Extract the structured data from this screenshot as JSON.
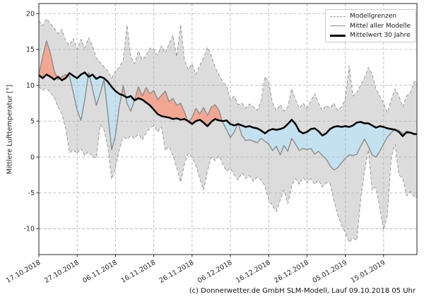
{
  "window": {
    "caption": "(c) Donnerwetter.de GmbH SLM-Modell, Lauf 09.10.2018 05 Uhr"
  },
  "chart_data": {
    "type": "line",
    "title": "",
    "xlabel": "",
    "ylabel": "Mittlere Lufttemperatur [°]",
    "ylim": [
      -13.6,
      21.4
    ],
    "yticks": [
      20,
      15,
      10,
      5,
      0,
      -5,
      -10
    ],
    "xtick_labels": [
      "17.10.2018",
      "27.10.2018",
      "06.11.2018",
      "16.11.2018",
      "26.11.2018",
      "06.12.2018",
      "16.12.2018",
      "26.12.2018",
      "05.01.2019",
      "15.01.2019"
    ],
    "xtick_days": [
      0,
      10,
      20,
      30,
      40,
      50,
      60,
      70,
      80,
      90
    ],
    "x_days_max": 98.7,
    "x_note": "x values are days after 17.10.2018, one sample per day",
    "grid": true,
    "legend": {
      "position": "upper right",
      "items": [
        {
          "label": "Modellgrenzen",
          "style": "dashed",
          "color": "#999999"
        },
        {
          "label": "Mittel aller Modelle",
          "style": "solid",
          "color": "#8c8c8c"
        },
        {
          "label": "Mittelwert 30 Jahre",
          "style": "bold",
          "color": "#000000"
        }
      ]
    },
    "colors": {
      "envelope_fill": "#dcdcdc",
      "warmer_fill": "#f2a795",
      "colder_fill": "#c4e1f0",
      "grid": "#b8b8b8",
      "spine": "#262626",
      "envelope_edge": "#999999",
      "mean_line": "#8c8c8c",
      "climate_line": "#000000"
    },
    "series": [
      {
        "name": "Modellgrenzen (oben)",
        "role": "envelope_upper",
        "values": [
          19.0,
          18.3,
          19.3,
          18.6,
          18.0,
          17.2,
          17.8,
          16.2,
          15.6,
          16.5,
          15.0,
          16.4,
          15.2,
          16.6,
          15.5,
          13.8,
          13.2,
          12.6,
          12.0,
          11.0,
          12.0,
          12.5,
          13.5,
          18.4,
          14.0,
          13.0,
          14.8,
          13.5,
          14.2,
          15.2,
          15.0,
          14.2,
          15.5,
          14.5,
          15.8,
          17.0,
          14.0,
          18.5,
          13.5,
          12.2,
          13.0,
          11.5,
          12.8,
          13.8,
          15.3,
          14.2,
          12.5,
          11.5,
          10.5,
          9.9,
          8.0,
          8.5,
          7.3,
          7.5,
          6.8,
          7.4,
          7.0,
          6.5,
          7.8,
          11.2,
          10.5,
          7.5,
          6.5,
          7.3,
          6.4,
          7.0,
          9.5,
          8.0,
          6.8,
          7.5,
          6.8,
          7.8,
          8.8,
          7.5,
          6.5,
          7.2,
          6.8,
          7.5,
          6.5,
          7.0,
          8.0,
          12.7,
          8.5,
          9.0,
          10.0,
          11.0,
          12.5,
          11.5,
          9.5,
          8.5,
          7.5,
          6.2,
          8.0,
          9.5,
          8.5,
          7.0,
          8.5,
          9.0,
          10.5
        ]
      },
      {
        "name": "Modellgrenzen (unten)",
        "role": "envelope_lower",
        "values": [
          9.8,
          9.3,
          9.6,
          9.0,
          8.3,
          7.0,
          6.0,
          4.0,
          0.6,
          1.0,
          0.5,
          1.2,
          0.2,
          0.8,
          0.0,
          -0.1,
          4.5,
          3.8,
          1.5,
          -3.1,
          -1.5,
          1.0,
          2.8,
          2.5,
          3.0,
          2.6,
          3.2,
          2.4,
          3.4,
          4.0,
          4.4,
          3.5,
          4.2,
          0.9,
          1.5,
          0.2,
          -1.5,
          -3.5,
          -1.0,
          0.5,
          0.0,
          -1.2,
          -3.0,
          -4.6,
          -2.0,
          0.0,
          -0.5,
          0.2,
          -1.0,
          -2.0,
          -1.6,
          -2.5,
          -3.2,
          -2.2,
          -3.0,
          -2.6,
          -3.4,
          -2.8,
          -3.2,
          -4.0,
          -6.0,
          -6.8,
          -7.6,
          -6.0,
          -4.6,
          -6.5,
          -4.0,
          -3.0,
          -3.8,
          -2.8,
          -3.6,
          -3.0,
          -3.8,
          -3.2,
          -4.2,
          -3.6,
          -3.7,
          -6.0,
          -8.0,
          -9.5,
          -10.5,
          -11.9,
          -11.3,
          -11.6,
          -6.0,
          -2.0,
          1.0,
          -4.6,
          -4.2,
          -7.0,
          -10.2,
          -8.0,
          0.0,
          1.8,
          -2.5,
          -3.0,
          -5.4,
          -4.8,
          -5.6
        ]
      },
      {
        "name": "Mittel aller Modelle",
        "role": "mean_models",
        "values": [
          11.5,
          14.0,
          16.2,
          14.5,
          12.0,
          10.8,
          11.2,
          11.5,
          11.2,
          9.0,
          6.5,
          5.1,
          8.0,
          11.8,
          9.5,
          7.2,
          8.8,
          10.8,
          6.0,
          1.0,
          3.0,
          7.0,
          10.0,
          7.5,
          6.4,
          8.0,
          9.8,
          8.5,
          9.7,
          8.8,
          9.3,
          8.0,
          8.6,
          9.2,
          7.7,
          8.2,
          7.2,
          7.5,
          6.3,
          4.8,
          5.5,
          6.8,
          6.0,
          6.9,
          5.8,
          6.9,
          7.3,
          6.5,
          4.8,
          3.8,
          2.7,
          3.5,
          4.7,
          3.0,
          2.3,
          2.4,
          2.2,
          2.0,
          2.6,
          2.2,
          1.8,
          0.9,
          1.5,
          0.3,
          1.6,
          0.8,
          2.6,
          1.8,
          0.9,
          1.2,
          1.0,
          1.2,
          0.4,
          0.8,
          0.2,
          -0.3,
          -1.2,
          -1.8,
          -1.5,
          -0.8,
          -0.2,
          0.3,
          0.2,
          0.4,
          1.5,
          2.5,
          1.5,
          0.3,
          0.0,
          0.8,
          1.8,
          2.8,
          3.4,
          3.9,
          3.7,
          3.3,
          3.3,
          3.4,
          3.2
        ]
      },
      {
        "name": "Mittelwert 30 Jahre",
        "role": "climate_mean",
        "values": [
          11.4,
          11.0,
          11.5,
          11.2,
          10.8,
          11.2,
          10.7,
          11.0,
          11.7,
          11.3,
          11.0,
          11.5,
          11.8,
          11.2,
          11.5,
          10.9,
          11.2,
          11.0,
          10.5,
          9.8,
          9.2,
          8.8,
          8.6,
          8.3,
          8.5,
          7.9,
          8.2,
          8.0,
          7.6,
          7.2,
          6.6,
          6.0,
          5.7,
          5.6,
          5.5,
          5.3,
          5.4,
          5.2,
          5.3,
          5.0,
          4.6,
          5.0,
          5.2,
          4.8,
          4.3,
          4.9,
          5.3,
          5.1,
          5.0,
          5.1,
          4.6,
          4.4,
          4.6,
          4.4,
          4.2,
          4.3,
          4.1,
          4.0,
          3.7,
          3.3,
          3.7,
          3.9,
          3.8,
          3.9,
          4.1,
          4.6,
          5.2,
          4.6,
          3.6,
          3.3,
          3.5,
          3.9,
          4.0,
          3.6,
          3.0,
          3.3,
          3.9,
          4.2,
          4.3,
          4.2,
          4.3,
          4.2,
          4.4,
          4.8,
          4.9,
          4.7,
          4.7,
          4.4,
          4.1,
          4.3,
          4.2,
          4.0,
          3.9,
          3.8,
          3.5,
          2.9,
          3.5,
          3.4,
          3.2
        ]
      }
    ]
  }
}
